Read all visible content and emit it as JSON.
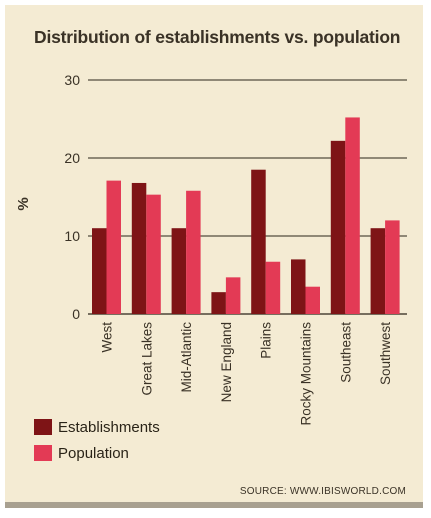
{
  "chart_data": {
    "type": "bar",
    "title": "Distribution of establishments vs. population",
    "ylabel": "%",
    "xlabel": "",
    "ylim": [
      0,
      30
    ],
    "yticks": [
      0,
      10,
      20,
      30
    ],
    "grid": true,
    "legend_position": "bottom-left",
    "categories": [
      "West",
      "Great Lakes",
      "Mid-Atlantic",
      "New England",
      "Plains",
      "Rocky Mountains",
      "Southeast",
      "Southwest"
    ],
    "series": [
      {
        "name": "Establishments",
        "color": "#7e1416",
        "values": [
          11.0,
          16.8,
          11.0,
          2.8,
          18.5,
          7.0,
          22.2,
          11.0
        ]
      },
      {
        "name": "Population",
        "color": "#e33a55",
        "values": [
          17.1,
          15.3,
          15.8,
          4.7,
          6.7,
          3.5,
          25.2,
          12.0
        ]
      }
    ],
    "source": "SOURCE: WWW.IBISWORLD.COM"
  }
}
